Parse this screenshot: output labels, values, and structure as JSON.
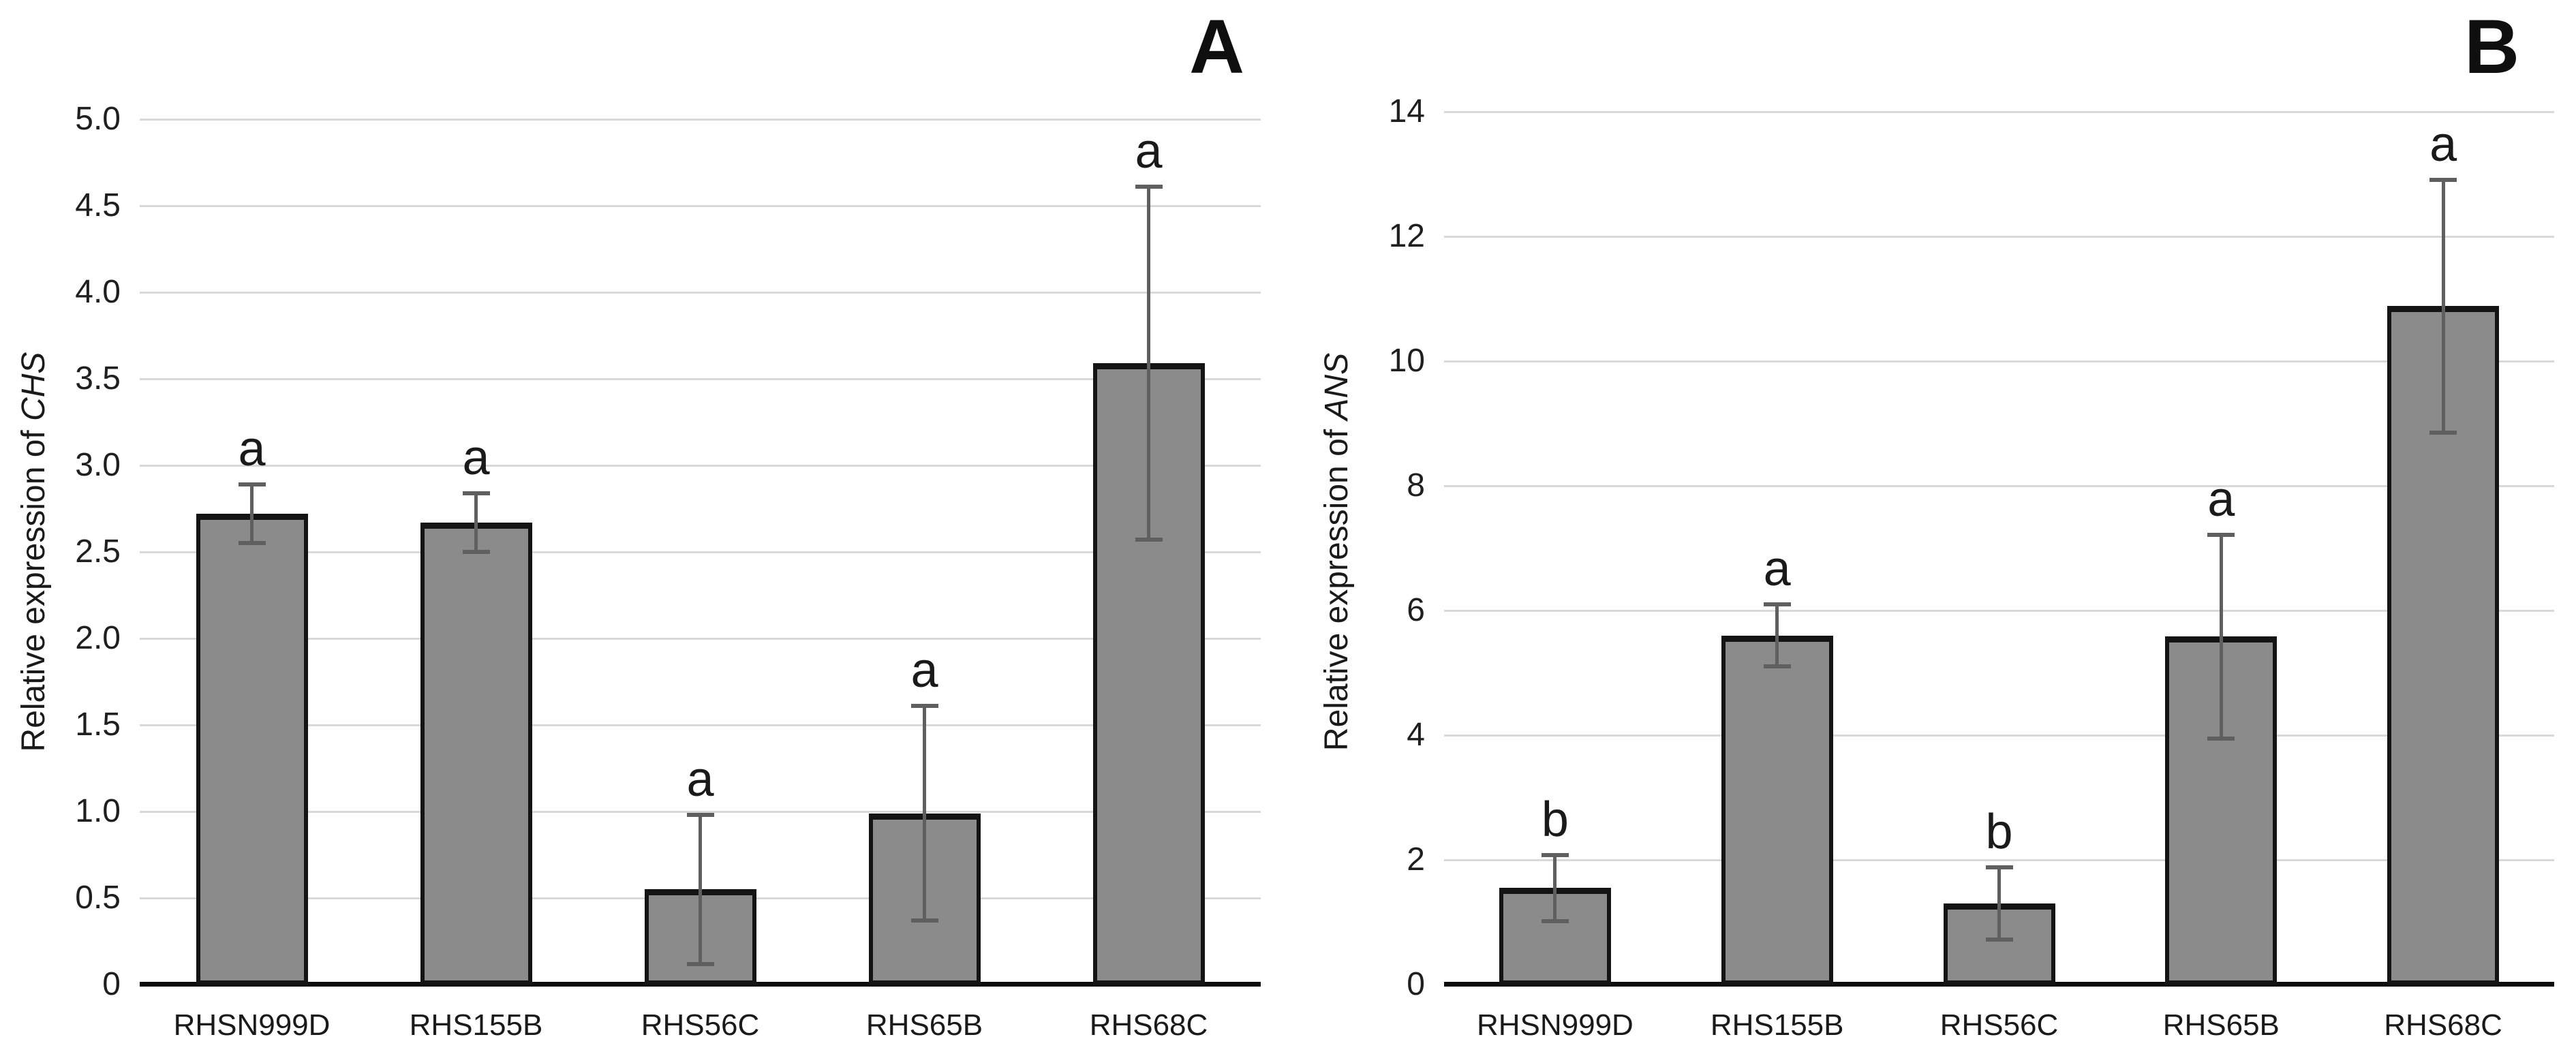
{
  "colors": {
    "bar_fill": "#8b8b8b",
    "bar_border": "#141414",
    "error_bar": "#5f5f5f",
    "gridline": "#d9d9d9",
    "axis_line": "#0d0d0d",
    "text": "#1a1a1a"
  },
  "chart_data": [
    {
      "type": "bar",
      "panel_label": "A",
      "title": "",
      "ylabel": "Relative expression of CHS",
      "ylabel_plain": "Relative expression of ",
      "ylabel_italic": "CHS",
      "xlabel": "",
      "categories": [
        "RHSN999D",
        "RHS155B",
        "RHS56C",
        "RHS65B",
        "RHS68C"
      ],
      "values": [
        2.72,
        2.67,
        0.55,
        0.99,
        3.59
      ],
      "error_bars": [
        0.17,
        0.17,
        0.43,
        0.62,
        1.02
      ],
      "sig_letters": [
        "a",
        "a",
        "a",
        "a",
        "a"
      ],
      "ylim": [
        0,
        5
      ],
      "ytick_step": 0.5,
      "ytick_labels": [
        "0",
        "0.5",
        "1.0",
        "1.5",
        "2.0",
        "2.5",
        "3.0",
        "3.5",
        "4.0",
        "4.5",
        "5.0"
      ],
      "grid": "on",
      "legend": "none"
    },
    {
      "type": "bar",
      "panel_label": "B",
      "title": "",
      "ylabel": "Relative expression of ANS",
      "ylabel_plain": "Relative expression of ",
      "ylabel_italic": "ANS",
      "xlabel": "",
      "categories": [
        "RHSN999D",
        "RHS155B",
        "RHS56C",
        "RHS65B",
        "RHS68C"
      ],
      "values": [
        1.55,
        5.6,
        1.3,
        5.58,
        10.88
      ],
      "error_bars": [
        0.53,
        0.5,
        0.58,
        1.63,
        2.03
      ],
      "sig_letters": [
        "b",
        "a",
        "b",
        "a",
        "a"
      ],
      "ylim": [
        0,
        14
      ],
      "ytick_step": 2,
      "ytick_labels": [
        "0",
        "2",
        "4",
        "6",
        "8",
        "10",
        "12",
        "14"
      ],
      "grid": "on",
      "legend": "none"
    }
  ]
}
